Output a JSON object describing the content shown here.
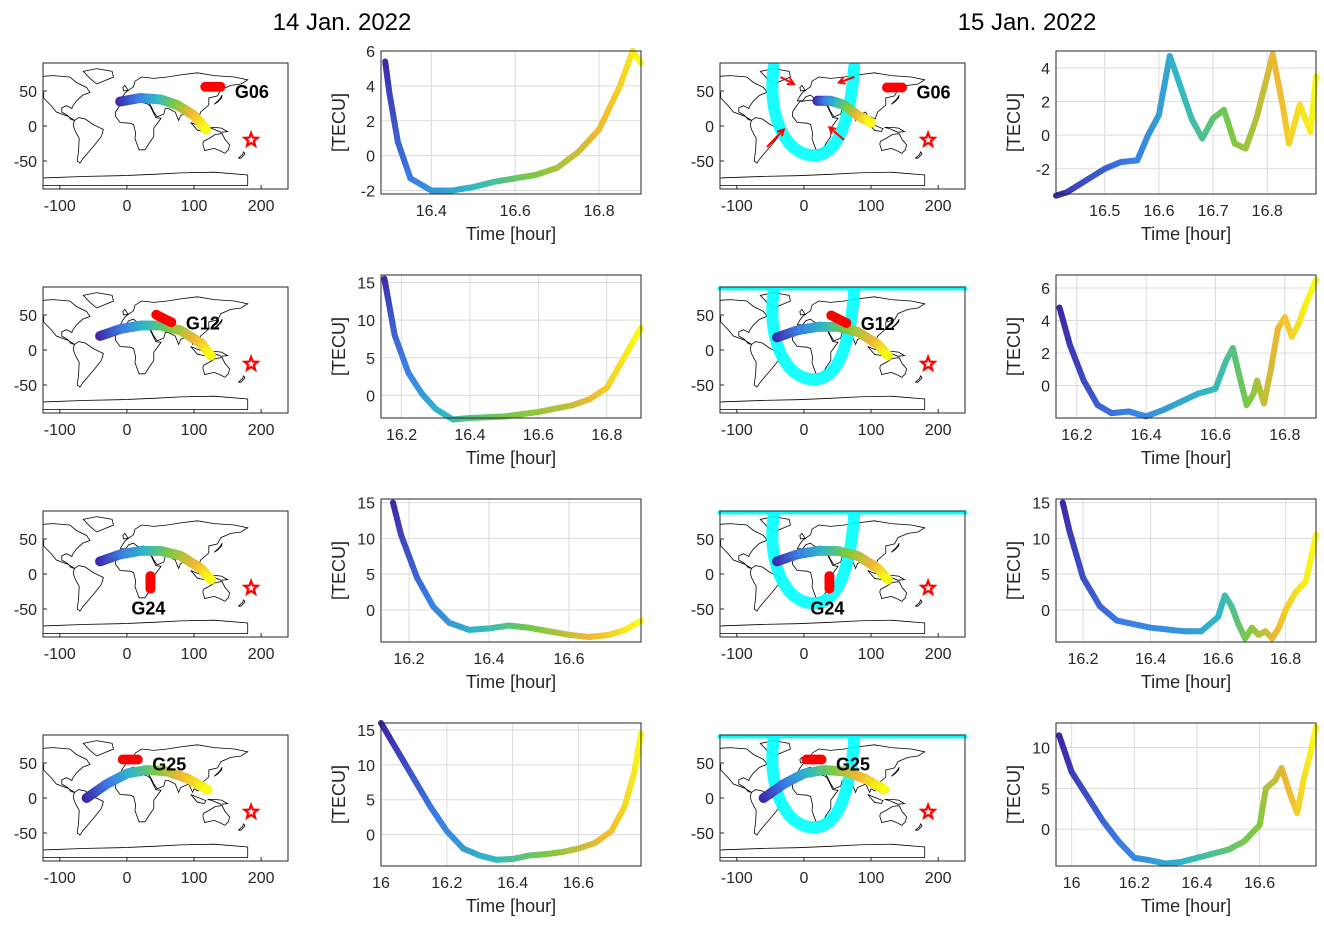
{
  "figure": {
    "column_titles": [
      "14 Jan. 2022",
      "15 Jan. 2022"
    ],
    "colors": {
      "trace_start": "#3e26a8",
      "trace_mid": "#2fb9c6",
      "trace_end": "#f9fb15",
      "satellite_marker": "#ff0000",
      "epicenter_star": "#ff0000",
      "wave_front": "#00ffff",
      "arrows": "#ff0000"
    },
    "map_axes": {
      "xticks": [
        "-100",
        "0",
        "100",
        "200"
      ],
      "yticks": [
        "50",
        "0",
        "-50"
      ],
      "xlim": [
        -125,
        240
      ],
      "ylim": [
        -90,
        90
      ]
    },
    "map_icons": [
      "coastline-icon",
      "epicenter-star-icon",
      "wave-front-icon",
      "arrow-icon"
    ]
  },
  "chart_data": [
    {
      "type": "line",
      "date": "14 Jan. 2022",
      "satellite": "G06",
      "xlabel": "Time [hour]",
      "ylabel": "[TECU]",
      "xlim": [
        16.28,
        16.9
      ],
      "ylim": [
        -2.2,
        6
      ],
      "xticks": [
        "16.4",
        "16.6",
        "16.8"
      ],
      "yticks": [
        "-2",
        "0",
        "2",
        "4",
        "6"
      ],
      "x": [
        16.29,
        16.3,
        16.32,
        16.35,
        16.4,
        16.45,
        16.5,
        16.55,
        16.6,
        16.65,
        16.7,
        16.75,
        16.8,
        16.85,
        16.88,
        16.9
      ],
      "y": [
        5.4,
        3.6,
        0.8,
        -1.3,
        -2.0,
        -2.0,
        -1.8,
        -1.5,
        -1.3,
        -1.1,
        -0.7,
        0.2,
        1.5,
        4.0,
        6.0,
        5.3
      ],
      "track": {
        "lon": [
          -10,
          20,
          50,
          75,
          100,
          118
        ],
        "lat": [
          35,
          40,
          38,
          30,
          15,
          -5
        ]
      },
      "marker": {
        "lon": [
          128
        ],
        "lat": [
          56
        ]
      }
    },
    {
      "type": "line",
      "date": "15 Jan. 2022",
      "satellite": "G06",
      "xlabel": "Time [hour]",
      "ylabel": "[TECU]",
      "xlim": [
        16.41,
        16.89
      ],
      "ylim": [
        -3.5,
        5
      ],
      "xticks": [
        "16.5",
        "16.6",
        "16.7",
        "16.8"
      ],
      "yticks": [
        "-2",
        "0",
        "2",
        "4"
      ],
      "x": [
        16.41,
        16.43,
        16.46,
        16.5,
        16.53,
        16.56,
        16.58,
        16.6,
        16.62,
        16.63,
        16.66,
        16.68,
        16.7,
        16.72,
        16.74,
        16.76,
        16.78,
        16.8,
        16.81,
        16.83,
        16.84,
        16.86,
        16.88,
        16.89
      ],
      "y": [
        -3.6,
        -3.4,
        -2.8,
        -2.0,
        -1.6,
        -1.5,
        0.0,
        1.2,
        4.7,
        3.8,
        1.0,
        -0.2,
        1.0,
        1.5,
        -0.5,
        -0.8,
        1.0,
        3.5,
        4.8,
        1.5,
        -0.5,
        1.8,
        0.2,
        3.5
      ],
      "track": {
        "lon": [
          20,
          40,
          60,
          80,
          100
        ],
        "lat": [
          36,
          36,
          30,
          15,
          5
        ]
      },
      "marker": {
        "lon": [
          135
        ],
        "lat": [
          55
        ]
      }
    },
    {
      "type": "line",
      "date": "14 Jan. 2022",
      "satellite": "G12",
      "xlabel": "Time [hour]",
      "ylabel": "[TECU]",
      "xlim": [
        16.14,
        16.9
      ],
      "ylim": [
        -3,
        16
      ],
      "xticks": [
        "16.2",
        "16.4",
        "16.6",
        "16.8"
      ],
      "yticks": [
        "0",
        "5",
        "10",
        "15"
      ],
      "x": [
        16.15,
        16.16,
        16.18,
        16.22,
        16.26,
        16.3,
        16.35,
        16.4,
        16.5,
        16.6,
        16.7,
        16.75,
        16.8,
        16.85,
        16.9
      ],
      "y": [
        15.5,
        13.0,
        8.0,
        3.0,
        0.2,
        -1.8,
        -3.2,
        -3.0,
        -2.8,
        -2.2,
        -1.3,
        -0.5,
        1.0,
        5.0,
        9.0
      ],
      "track": {
        "lon": [
          -40,
          -10,
          20,
          50,
          80,
          110,
          125
        ],
        "lat": [
          20,
          30,
          35,
          35,
          28,
          10,
          -8
        ]
      },
      "marker": {
        "lon": [
          55
        ],
        "lat": [
          45
        ]
      }
    },
    {
      "type": "line",
      "date": "15 Jan. 2022",
      "satellite": "G12",
      "xlabel": "Time [hour]",
      "ylabel": "[TECU]",
      "xlim": [
        16.14,
        16.89
      ],
      "ylim": [
        -2,
        6.8
      ],
      "xticks": [
        "16.2",
        "16.4",
        "16.6",
        "16.8"
      ],
      "yticks": [
        "0",
        "2",
        "4",
        "6"
      ],
      "x": [
        16.15,
        16.18,
        16.22,
        16.26,
        16.3,
        16.35,
        16.4,
        16.45,
        16.5,
        16.55,
        16.6,
        16.63,
        16.65,
        16.67,
        16.69,
        16.71,
        16.72,
        16.74,
        16.76,
        16.78,
        16.8,
        16.82,
        16.84,
        16.86,
        16.89
      ],
      "y": [
        4.8,
        2.5,
        0.3,
        -1.2,
        -1.7,
        -1.6,
        -1.9,
        -1.5,
        -1.0,
        -0.5,
        -0.2,
        1.5,
        2.3,
        0.5,
        -1.2,
        -0.5,
        0.3,
        -1.1,
        1.0,
        3.5,
        4.2,
        3.0,
        3.8,
        5.0,
        6.5
      ],
      "track": {
        "lon": [
          -40,
          -10,
          20,
          50,
          80,
          110,
          125
        ],
        "lat": [
          18,
          28,
          33,
          33,
          26,
          8,
          -8
        ]
      },
      "marker": {
        "lon": [
          52
        ],
        "lat": [
          44
        ]
      }
    },
    {
      "type": "line",
      "date": "14 Jan. 2022",
      "satellite": "G24",
      "xlabel": "Time [hour]",
      "ylabel": "[TECU]",
      "xlim": [
        16.13,
        16.78
      ],
      "ylim": [
        -4.5,
        15.5
      ],
      "xticks": [
        "16.2",
        "16.4",
        "16.6"
      ],
      "yticks": [
        "0",
        "5",
        "10",
        "15"
      ],
      "x": [
        16.16,
        16.18,
        16.22,
        16.26,
        16.3,
        16.35,
        16.4,
        16.45,
        16.5,
        16.55,
        16.6,
        16.65,
        16.7,
        16.74,
        16.78
      ],
      "y": [
        15.0,
        10.5,
        4.5,
        0.5,
        -1.8,
        -2.8,
        -2.6,
        -2.2,
        -2.5,
        -3.0,
        -3.5,
        -3.8,
        -3.5,
        -2.8,
        -1.5
      ],
      "track": {
        "lon": [
          -40,
          -10,
          20,
          50,
          80,
          110,
          125
        ],
        "lat": [
          18,
          28,
          33,
          33,
          26,
          8,
          -8
        ]
      },
      "marker": {
        "lon": [
          35
        ],
        "lat": [
          -12
        ]
      }
    },
    {
      "type": "line",
      "date": "15 Jan. 2022",
      "satellite": "G24",
      "xlabel": "Time [hour]",
      "ylabel": "[TECU]",
      "xlim": [
        16.12,
        16.89
      ],
      "ylim": [
        -4.5,
        15.5
      ],
      "xticks": [
        "16.2",
        "16.4",
        "16.6",
        "16.8"
      ],
      "yticks": [
        "0",
        "5",
        "10",
        "15"
      ],
      "x": [
        16.14,
        16.16,
        16.2,
        16.25,
        16.3,
        16.4,
        16.5,
        16.55,
        16.6,
        16.62,
        16.64,
        16.66,
        16.68,
        16.7,
        16.72,
        16.74,
        16.76,
        16.78,
        16.8,
        16.83,
        16.86,
        16.89
      ],
      "y": [
        15.0,
        11.0,
        4.5,
        0.5,
        -1.5,
        -2.5,
        -3.0,
        -3.0,
        -1.0,
        2.0,
        0.5,
        -2.0,
        -4.0,
        -2.5,
        -3.5,
        -3.0,
        -4.0,
        -2.5,
        0.0,
        2.5,
        4.0,
        10.5
      ],
      "track": {
        "lon": [
          -40,
          -10,
          20,
          50,
          80,
          110,
          125
        ],
        "lat": [
          18,
          28,
          33,
          33,
          26,
          8,
          -8
        ]
      },
      "marker": {
        "lon": [
          38
        ],
        "lat": [
          -12
        ]
      }
    },
    {
      "type": "line",
      "date": "14 Jan. 2022",
      "satellite": "G25",
      "xlabel": "Time [hour]",
      "ylabel": "[TECU]",
      "xlim": [
        16.0,
        16.79
      ],
      "ylim": [
        -4.5,
        16
      ],
      "xticks": [
        "16",
        "16.2",
        "16.4",
        "16.6"
      ],
      "yticks": [
        "0",
        "5",
        "10",
        "15"
      ],
      "x": [
        16.0,
        16.05,
        16.1,
        16.15,
        16.2,
        16.25,
        16.3,
        16.35,
        16.4,
        16.45,
        16.5,
        16.55,
        16.6,
        16.65,
        16.7,
        16.74,
        16.77,
        16.79
      ],
      "y": [
        16.0,
        12.0,
        8.0,
        4.0,
        0.5,
        -2.0,
        -3.0,
        -3.6,
        -3.5,
        -3.0,
        -2.8,
        -2.5,
        -2.0,
        -1.2,
        0.5,
        4.0,
        9.0,
        14.5
      ],
      "track": {
        "lon": [
          -60,
          -30,
          0,
          30,
          60,
          90,
          120
        ],
        "lat": [
          0,
          20,
          35,
          40,
          38,
          28,
          12
        ]
      },
      "marker": {
        "lon": [
          5
        ],
        "lat": [
          55
        ]
      }
    },
    {
      "type": "line",
      "date": "15 Jan. 2022",
      "satellite": "G25",
      "xlabel": "Time [hour]",
      "ylabel": "[TECU]",
      "xlim": [
        15.95,
        16.78
      ],
      "ylim": [
        -4.5,
        13
      ],
      "xticks": [
        "16",
        "16.2",
        "16.4",
        "16.6"
      ],
      "yticks": [
        "0",
        "5",
        "10"
      ],
      "x": [
        15.96,
        16.0,
        16.05,
        16.1,
        16.15,
        16.2,
        16.25,
        16.3,
        16.35,
        16.4,
        16.45,
        16.5,
        16.55,
        16.6,
        16.62,
        16.65,
        16.67,
        16.7,
        16.72,
        16.74,
        16.76,
        16.78
      ],
      "y": [
        11.5,
        7.0,
        4.0,
        1.0,
        -1.5,
        -3.5,
        -3.8,
        -4.2,
        -4.0,
        -3.5,
        -3.0,
        -2.5,
        -1.5,
        0.5,
        5.0,
        6.0,
        7.5,
        4.0,
        2.0,
        6.0,
        9.0,
        12.5
      ],
      "track": {
        "lon": [
          -60,
          -30,
          0,
          30,
          60,
          90,
          120
        ],
        "lat": [
          0,
          20,
          35,
          40,
          38,
          28,
          12
        ]
      },
      "marker": {
        "lon": [
          15
        ],
        "lat": [
          55
        ]
      }
    }
  ]
}
